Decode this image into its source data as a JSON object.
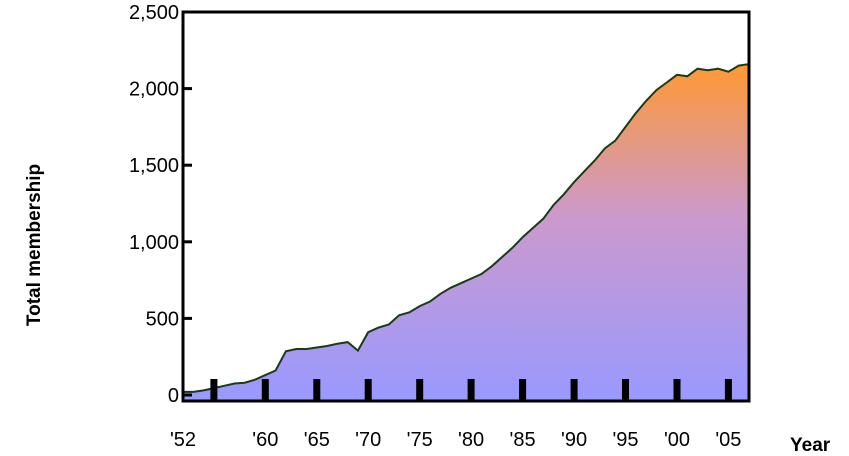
{
  "chart_data": {
    "type": "area",
    "title": "",
    "xlabel": "Year",
    "ylabel": "Total membership",
    "xlim": [
      1952,
      2007
    ],
    "ylim": [
      0,
      2500
    ],
    "x_ticks": [
      1952,
      1960,
      1965,
      1970,
      1975,
      1980,
      1985,
      1990,
      1995,
      2000,
      2005
    ],
    "x_tick_labels": [
      "'52",
      "'60",
      "'65",
      "'70",
      "'75",
      "'80",
      "'85",
      "'90",
      "'95",
      "'00",
      "'05"
    ],
    "y_ticks": [
      0,
      500,
      1000,
      1500,
      2000,
      2500
    ],
    "y_tick_labels": [
      "0",
      "500",
      "1,000",
      "1,500",
      "2,000",
      "2,500"
    ],
    "grid": false,
    "legend": false,
    "colors": {
      "fill_bottom": "#9999ff",
      "fill_top": "#ff9933",
      "line": "#1a3a1a",
      "frame": "#000000"
    },
    "series": [
      {
        "x": [
          1952,
          1953,
          1954,
          1955,
          1956,
          1957,
          1958,
          1959,
          1960,
          1961,
          1962,
          1963,
          1964,
          1965,
          1966,
          1967,
          1968,
          1969,
          1970,
          1971,
          1972,
          1973,
          1974,
          1975,
          1976,
          1977,
          1978,
          1979,
          1980,
          1981,
          1982,
          1983,
          1984,
          1985,
          1986,
          1987,
          1988,
          1989,
          1990,
          1991,
          1992,
          1993,
          1994,
          1995,
          1996,
          1997,
          1998,
          1999,
          2000,
          2001,
          2002,
          2003,
          2004,
          2005,
          2006,
          2007
        ],
        "y": [
          20,
          20,
          30,
          45,
          60,
          75,
          80,
          100,
          130,
          160,
          285,
          300,
          300,
          310,
          320,
          335,
          345,
          290,
          410,
          440,
          460,
          520,
          540,
          580,
          610,
          660,
          700,
          730,
          760,
          790,
          840,
          900,
          960,
          1030,
          1090,
          1150,
          1240,
          1310,
          1390,
          1460,
          1530,
          1610,
          1660,
          1750,
          1840,
          1920,
          1990,
          2040,
          2090,
          2080,
          2130,
          2120,
          2130,
          2110,
          2150,
          2160
        ]
      }
    ],
    "markers_x": [
      1955,
      1960,
      1965,
      1970,
      1975,
      1980,
      1985,
      1990,
      1995,
      2000,
      2005
    ]
  }
}
